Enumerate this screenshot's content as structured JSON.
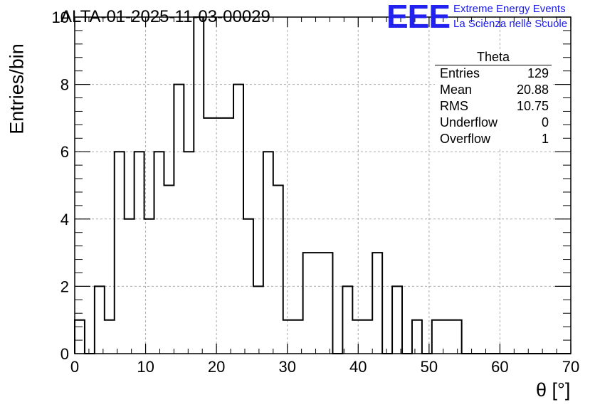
{
  "chart_data": {
    "type": "bar",
    "title": "ALTA-01-2025-11-03-00029",
    "xlabel": "θ [°]",
    "ylabel": "Entries/bin",
    "xlim": [
      0,
      70
    ],
    "ylim": [
      0,
      10
    ],
    "x_ticks": [
      "0",
      "10",
      "20",
      "30",
      "40",
      "50",
      "60",
      "70"
    ],
    "y_ticks": [
      "0",
      "2",
      "4",
      "6",
      "8",
      "10"
    ],
    "grid": true,
    "bin_width": 1.4,
    "values": [
      1,
      0,
      2,
      1,
      6,
      4,
      6,
      4,
      6,
      5,
      8,
      6,
      10,
      7,
      7,
      7,
      8,
      4,
      2,
      6,
      5,
      1,
      1,
      3,
      3,
      3,
      0,
      2,
      1,
      1,
      3,
      0,
      2,
      0,
      1,
      0,
      1,
      1,
      1,
      0,
      0,
      0,
      0,
      0,
      0,
      0,
      0,
      0,
      0,
      0
    ]
  },
  "stats_box": {
    "title": "Theta",
    "rows": [
      {
        "label": "Entries",
        "value": "129"
      },
      {
        "label": "Mean",
        "value": "20.88"
      },
      {
        "label": "RMS",
        "value": "10.75"
      },
      {
        "label": "Underflow",
        "value": "0"
      },
      {
        "label": "Overflow",
        "value": "1"
      }
    ]
  },
  "logo": {
    "mark": "EEE",
    "line1": "Extreme Energy Events",
    "line2": "La Scienza nelle Scuole",
    "color": "#2222ee"
  }
}
